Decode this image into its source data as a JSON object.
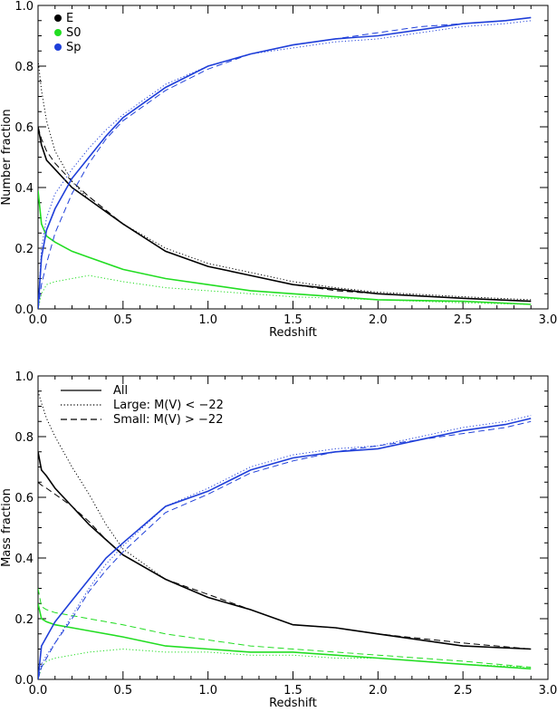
{
  "chart_data": [
    {
      "type": "line",
      "xlabel": "Redshift",
      "ylabel": "Number fraction",
      "xlim": [
        0.0,
        3.0
      ],
      "ylim": [
        0.0,
        1.0
      ],
      "xticks": [
        "0.0",
        "0.5",
        "1.0",
        "1.5",
        "2.0",
        "2.5",
        "3.0"
      ],
      "yticks": [
        "0.0",
        "0.2",
        "0.4",
        "0.6",
        "0.8",
        "1.0"
      ],
      "legend": {
        "placement": "top-left",
        "entries": [
          {
            "label": "E",
            "color": "#000000"
          },
          {
            "label": "S0",
            "color": "#22dd22"
          },
          {
            "label": "Sp",
            "color": "#1f3fd9"
          }
        ]
      },
      "series": [
        {
          "name": "E",
          "style": "solid",
          "color": "#000000",
          "x": [
            0.0,
            0.02,
            0.05,
            0.1,
            0.2,
            0.3,
            0.5,
            0.75,
            1.0,
            1.25,
            1.5,
            1.75,
            2.0,
            2.5,
            2.9
          ],
          "y": [
            0.6,
            0.54,
            0.49,
            0.46,
            0.4,
            0.36,
            0.28,
            0.19,
            0.14,
            0.11,
            0.08,
            0.065,
            0.05,
            0.035,
            0.025
          ]
        },
        {
          "name": "E",
          "style": "dotted",
          "color": "#000000",
          "x": [
            0.0,
            0.02,
            0.05,
            0.1,
            0.2,
            0.3,
            0.5,
            0.75,
            1.0,
            1.25,
            1.5,
            1.75,
            2.0,
            2.5,
            2.9
          ],
          "y": [
            0.82,
            0.72,
            0.62,
            0.52,
            0.42,
            0.36,
            0.28,
            0.2,
            0.15,
            0.12,
            0.09,
            0.07,
            0.055,
            0.04,
            0.03
          ]
        },
        {
          "name": "E",
          "style": "dashed",
          "color": "#000000",
          "x": [
            0.0,
            0.02,
            0.05,
            0.1,
            0.2,
            0.3,
            0.5,
            0.75,
            1.0,
            1.25,
            1.5,
            1.75,
            2.0,
            2.5,
            2.9
          ],
          "y": [
            0.6,
            0.56,
            0.52,
            0.48,
            0.42,
            0.37,
            0.28,
            0.19,
            0.14,
            0.11,
            0.08,
            0.06,
            0.05,
            0.035,
            0.025
          ]
        },
        {
          "name": "S0",
          "style": "solid",
          "color": "#22dd22",
          "x": [
            0.0,
            0.02,
            0.05,
            0.1,
            0.2,
            0.3,
            0.5,
            0.75,
            1.0,
            1.25,
            1.5,
            1.75,
            2.0,
            2.5,
            2.9
          ],
          "y": [
            0.39,
            0.28,
            0.24,
            0.22,
            0.19,
            0.17,
            0.13,
            0.1,
            0.08,
            0.06,
            0.05,
            0.04,
            0.03,
            0.025,
            0.015
          ]
        },
        {
          "name": "S0",
          "style": "dotted",
          "color": "#22dd22",
          "x": [
            0.0,
            0.02,
            0.05,
            0.1,
            0.2,
            0.3,
            0.5,
            0.75,
            1.0,
            1.25,
            1.5,
            1.75,
            2.0,
            2.5,
            2.9
          ],
          "y": [
            0.0,
            0.05,
            0.08,
            0.09,
            0.1,
            0.11,
            0.09,
            0.07,
            0.06,
            0.05,
            0.04,
            0.035,
            0.03,
            0.02,
            0.015
          ]
        },
        {
          "name": "Sp",
          "style": "solid",
          "color": "#1f3fd9",
          "x": [
            0.0,
            0.02,
            0.05,
            0.1,
            0.2,
            0.3,
            0.4,
            0.5,
            0.75,
            1.0,
            1.25,
            1.5,
            1.75,
            2.0,
            2.25,
            2.5,
            2.75,
            2.9
          ],
          "y": [
            0.0,
            0.17,
            0.26,
            0.33,
            0.43,
            0.5,
            0.57,
            0.63,
            0.73,
            0.8,
            0.84,
            0.87,
            0.89,
            0.9,
            0.92,
            0.94,
            0.95,
            0.96
          ]
        },
        {
          "name": "Sp",
          "style": "dotted",
          "color": "#1f3fd9",
          "x": [
            0.0,
            0.02,
            0.05,
            0.1,
            0.2,
            0.3,
            0.4,
            0.5,
            0.75,
            1.0,
            1.25,
            1.5,
            1.75,
            2.0,
            2.25,
            2.5,
            2.75,
            2.9
          ],
          "y": [
            0.0,
            0.2,
            0.3,
            0.38,
            0.46,
            0.53,
            0.59,
            0.64,
            0.74,
            0.8,
            0.84,
            0.86,
            0.88,
            0.89,
            0.91,
            0.93,
            0.94,
            0.95
          ]
        },
        {
          "name": "Sp",
          "style": "dashed",
          "color": "#1f3fd9",
          "x": [
            0.0,
            0.02,
            0.05,
            0.1,
            0.2,
            0.3,
            0.4,
            0.5,
            0.75,
            1.0,
            1.25,
            1.5,
            1.75,
            2.0,
            2.25,
            2.5,
            2.75,
            2.9
          ],
          "y": [
            0.0,
            0.08,
            0.15,
            0.25,
            0.38,
            0.48,
            0.56,
            0.62,
            0.72,
            0.79,
            0.84,
            0.87,
            0.89,
            0.91,
            0.93,
            0.94,
            0.95,
            0.96
          ]
        }
      ]
    },
    {
      "type": "line",
      "xlabel": "Redshift",
      "ylabel": "Mass fraction",
      "xlim": [
        0.0,
        3.0
      ],
      "ylim": [
        0.0,
        1.0
      ],
      "xticks": [
        "0.0",
        "0.5",
        "1.0",
        "1.5",
        "2.0",
        "2.5",
        "3.0"
      ],
      "yticks": [
        "0.0",
        "0.2",
        "0.4",
        "0.6",
        "0.8",
        "1.0"
      ],
      "legend": {
        "placement": "top-left",
        "entries": [
          {
            "label": "All",
            "style": "solid"
          },
          {
            "label": "Large: M(V) < −22",
            "style": "dotted"
          },
          {
            "label": "Small: M(V) > −22",
            "style": "dashed"
          }
        ]
      },
      "series": [
        {
          "name": "E",
          "style": "solid",
          "color": "#000000",
          "x": [
            0.0,
            0.02,
            0.05,
            0.1,
            0.2,
            0.3,
            0.4,
            0.5,
            0.75,
            1.0,
            1.25,
            1.5,
            1.75,
            2.0,
            2.5,
            2.9
          ],
          "y": [
            0.75,
            0.69,
            0.67,
            0.63,
            0.57,
            0.51,
            0.46,
            0.41,
            0.33,
            0.27,
            0.23,
            0.18,
            0.17,
            0.15,
            0.11,
            0.1
          ]
        },
        {
          "name": "E",
          "style": "dotted",
          "color": "#000000",
          "x": [
            0.0,
            0.02,
            0.05,
            0.1,
            0.2,
            0.3,
            0.4,
            0.5,
            0.75,
            1.0,
            1.25,
            1.5,
            1.75,
            2.0,
            2.5,
            2.9
          ],
          "y": [
            0.95,
            0.91,
            0.86,
            0.8,
            0.7,
            0.61,
            0.51,
            0.43,
            0.33,
            0.27,
            0.23,
            0.18,
            0.17,
            0.15,
            0.11,
            0.1
          ]
        },
        {
          "name": "E",
          "style": "dashed",
          "color": "#000000",
          "x": [
            0.0,
            0.02,
            0.05,
            0.1,
            0.2,
            0.3,
            0.4,
            0.5,
            0.75,
            1.0,
            1.25,
            1.5,
            1.75,
            2.0,
            2.5,
            2.9
          ],
          "y": [
            0.65,
            0.64,
            0.63,
            0.61,
            0.57,
            0.52,
            0.46,
            0.41,
            0.33,
            0.28,
            0.23,
            0.18,
            0.17,
            0.15,
            0.12,
            0.1
          ]
        },
        {
          "name": "S0",
          "style": "solid",
          "color": "#22dd22",
          "x": [
            0.0,
            0.02,
            0.05,
            0.1,
            0.2,
            0.3,
            0.5,
            0.75,
            1.0,
            1.25,
            1.5,
            1.75,
            2.0,
            2.5,
            2.9
          ],
          "y": [
            0.25,
            0.2,
            0.19,
            0.18,
            0.17,
            0.16,
            0.14,
            0.11,
            0.1,
            0.09,
            0.09,
            0.08,
            0.07,
            0.05,
            0.035
          ]
        },
        {
          "name": "S0",
          "style": "dotted",
          "color": "#22dd22",
          "x": [
            0.0,
            0.02,
            0.05,
            0.1,
            0.2,
            0.3,
            0.5,
            0.75,
            1.0,
            1.25,
            1.5,
            1.75,
            2.0,
            2.5,
            2.9
          ],
          "y": [
            0.0,
            0.04,
            0.06,
            0.07,
            0.08,
            0.09,
            0.1,
            0.09,
            0.09,
            0.08,
            0.08,
            0.07,
            0.07,
            0.05,
            0.04
          ]
        },
        {
          "name": "S0",
          "style": "dashed",
          "color": "#22dd22",
          "x": [
            0.0,
            0.02,
            0.05,
            0.1,
            0.2,
            0.3,
            0.5,
            0.75,
            1.0,
            1.25,
            1.5,
            1.75,
            2.0,
            2.5,
            2.9
          ],
          "y": [
            0.3,
            0.24,
            0.23,
            0.22,
            0.21,
            0.2,
            0.18,
            0.15,
            0.13,
            0.11,
            0.1,
            0.09,
            0.08,
            0.06,
            0.04
          ]
        },
        {
          "name": "Sp",
          "style": "solid",
          "color": "#1f3fd9",
          "x": [
            0.0,
            0.02,
            0.05,
            0.1,
            0.2,
            0.3,
            0.4,
            0.5,
            0.75,
            1.0,
            1.25,
            1.5,
            1.75,
            2.0,
            2.25,
            2.5,
            2.75,
            2.9
          ],
          "y": [
            0.0,
            0.11,
            0.14,
            0.19,
            0.26,
            0.33,
            0.4,
            0.45,
            0.57,
            0.62,
            0.69,
            0.73,
            0.75,
            0.76,
            0.79,
            0.82,
            0.84,
            0.86
          ]
        },
        {
          "name": "Sp",
          "style": "dotted",
          "color": "#1f3fd9",
          "x": [
            0.0,
            0.02,
            0.05,
            0.1,
            0.2,
            0.3,
            0.4,
            0.5,
            0.75,
            1.0,
            1.25,
            1.5,
            1.75,
            2.0,
            2.25,
            2.5,
            2.75,
            2.9
          ],
          "y": [
            0.0,
            0.05,
            0.08,
            0.12,
            0.21,
            0.3,
            0.38,
            0.44,
            0.57,
            0.63,
            0.7,
            0.74,
            0.76,
            0.77,
            0.8,
            0.83,
            0.85,
            0.87
          ]
        },
        {
          "name": "Sp",
          "style": "dashed",
          "color": "#1f3fd9",
          "x": [
            0.0,
            0.02,
            0.05,
            0.1,
            0.2,
            0.3,
            0.4,
            0.5,
            0.75,
            1.0,
            1.25,
            1.5,
            1.75,
            2.0,
            2.25,
            2.5,
            2.75,
            2.9
          ],
          "y": [
            0.0,
            0.04,
            0.07,
            0.12,
            0.2,
            0.29,
            0.36,
            0.42,
            0.55,
            0.61,
            0.68,
            0.72,
            0.75,
            0.77,
            0.79,
            0.81,
            0.83,
            0.85
          ]
        }
      ]
    }
  ]
}
